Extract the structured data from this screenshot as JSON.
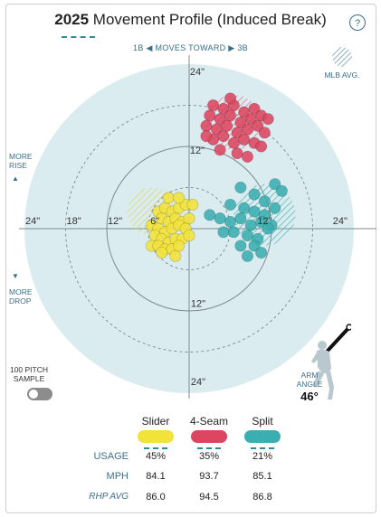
{
  "header": {
    "year": "2025",
    "title": "Movement Profile (Induced Break)",
    "help_icon": "?"
  },
  "direction": {
    "left": "1B",
    "middle": "MOVES TOWARD",
    "right": "3B"
  },
  "legend": {
    "mlb_avg_label": "MLB AVG."
  },
  "axes": {
    "more_rise": [
      "MORE",
      "RISE"
    ],
    "more_drop": [
      "MORE",
      "DROP"
    ],
    "rings": {
      "top": [
        "24\"",
        "12\""
      ],
      "bottom": [
        "12\"",
        "24\""
      ],
      "left": [
        "24\"",
        "18\"",
        "12\"",
        "6\""
      ],
      "right": [
        "12\"",
        "24\""
      ]
    }
  },
  "controls": {
    "sample_label": [
      "100 PITCH",
      "SAMPLE"
    ]
  },
  "arm": {
    "label": [
      "ARM",
      "ANGLE"
    ],
    "value": "46°"
  },
  "table": {
    "row_labels": {
      "usage": "USAGE",
      "mph": "MPH",
      "rhp": "RHP AVG"
    },
    "pitches": [
      {
        "name": "Slider",
        "color": "#f2e23a",
        "usage": "45%",
        "mph": "84.1",
        "rhp_avg": "86.0"
      },
      {
        "name": "4-Seam",
        "color": "#dc4560",
        "usage": "35%",
        "mph": "93.7",
        "rhp_avg": "94.5"
      },
      {
        "name": "Split",
        "color": "#3aaeb0",
        "usage": "21%",
        "mph": "85.1",
        "rhp_avg": "86.8"
      }
    ]
  },
  "chart_data": {
    "type": "scatter",
    "title": "2025 Movement Profile (Induced Break)",
    "units": "inches",
    "xlim": [
      -24,
      24
    ],
    "ylim": [
      -24,
      24
    ],
    "rings": [
      6,
      12,
      18,
      24
    ],
    "grid": true,
    "mlb_avg": [
      {
        "name": "Slider",
        "x": -5.5,
        "y": 2.5,
        "r": 3.5,
        "color": "#e8e470"
      },
      {
        "name": "4-Seam",
        "x": 6.5,
        "y": 15.5,
        "r": 4,
        "color": "#e06a80"
      },
      {
        "name": "Split",
        "x": 11.0,
        "y": 2.0,
        "r": 4.5,
        "color": "#55bdbe"
      }
    ],
    "series": [
      {
        "name": "Slider",
        "color": "#f2e23a",
        "points": [
          [
            -4.5,
            2.5
          ],
          [
            -3.5,
            3.0
          ],
          [
            -2.5,
            2.5
          ],
          [
            -1.5,
            3.0
          ],
          [
            -0.5,
            3.5
          ],
          [
            0.5,
            3.5
          ],
          [
            -4.0,
            1.5
          ],
          [
            -3.0,
            1.0
          ],
          [
            -2.0,
            1.5
          ],
          [
            -1.0,
            1.0
          ],
          [
            0.0,
            1.5
          ],
          [
            -5.5,
            0.5
          ],
          [
            -4.5,
            0.0
          ],
          [
            -3.5,
            -0.5
          ],
          [
            -2.5,
            0.0
          ],
          [
            -1.5,
            0.5
          ],
          [
            -0.5,
            0.0
          ],
          [
            -5.0,
            -1.0
          ],
          [
            -4.0,
            -1.5
          ],
          [
            -3.0,
            -2.0
          ],
          [
            -2.0,
            -1.5
          ],
          [
            -1.0,
            -1.5
          ],
          [
            0.0,
            -1.0
          ],
          [
            -5.5,
            -2.5
          ],
          [
            -4.5,
            -2.5
          ],
          [
            -3.5,
            -3.0
          ],
          [
            -2.5,
            -3.0
          ],
          [
            -1.5,
            -2.5
          ],
          [
            -3.0,
            4.5
          ],
          [
            -1.5,
            4.5
          ],
          [
            -2.0,
            -4.0
          ],
          [
            -4.0,
            -3.5
          ]
        ]
      },
      {
        "name": "4-Seam",
        "color": "#dc4560",
        "points": [
          [
            3.5,
            18.0
          ],
          [
            5.0,
            17.5
          ],
          [
            6.5,
            18.0
          ],
          [
            8.0,
            17.0
          ],
          [
            9.5,
            17.5
          ],
          [
            3.0,
            16.5
          ],
          [
            4.5,
            16.0
          ],
          [
            6.0,
            16.5
          ],
          [
            7.5,
            15.5
          ],
          [
            9.0,
            16.0
          ],
          [
            10.5,
            16.5
          ],
          [
            2.5,
            15.0
          ],
          [
            4.0,
            14.5
          ],
          [
            5.5,
            15.0
          ],
          [
            7.0,
            14.0
          ],
          [
            8.5,
            14.5
          ],
          [
            10.0,
            15.0
          ],
          [
            11.0,
            14.0
          ],
          [
            3.5,
            13.0
          ],
          [
            5.0,
            13.5
          ],
          [
            6.5,
            12.5
          ],
          [
            8.0,
            13.0
          ],
          [
            9.5,
            12.5
          ],
          [
            4.5,
            11.5
          ],
          [
            7.0,
            11.0
          ],
          [
            2.5,
            13.5
          ],
          [
            10.5,
            12.0
          ],
          [
            8.5,
            10.5
          ],
          [
            11.5,
            16.0
          ],
          [
            6.0,
            19.0
          ]
        ]
      },
      {
        "name": "Split",
        "color": "#3aaeb0",
        "points": [
          [
            7.5,
            6.0
          ],
          [
            9.5,
            5.0
          ],
          [
            11.0,
            4.0
          ],
          [
            12.5,
            6.5
          ],
          [
            13.5,
            5.5
          ],
          [
            6.0,
            3.5
          ],
          [
            8.0,
            3.0
          ],
          [
            9.5,
            2.5
          ],
          [
            11.0,
            2.0
          ],
          [
            12.5,
            3.0
          ],
          [
            3.0,
            2.0
          ],
          [
            4.5,
            1.5
          ],
          [
            6.0,
            1.0
          ],
          [
            7.5,
            1.5
          ],
          [
            9.0,
            0.5
          ],
          [
            10.5,
            1.0
          ],
          [
            12.0,
            0.5
          ],
          [
            6.5,
            -0.5
          ],
          [
            8.5,
            -1.0
          ],
          [
            10.0,
            -1.5
          ],
          [
            11.5,
            0.0
          ],
          [
            7.5,
            -2.5
          ],
          [
            9.5,
            -2.5
          ],
          [
            8.5,
            -4.0
          ],
          [
            5.0,
            -0.5
          ],
          [
            10.5,
            -3.5
          ]
        ]
      }
    ]
  }
}
